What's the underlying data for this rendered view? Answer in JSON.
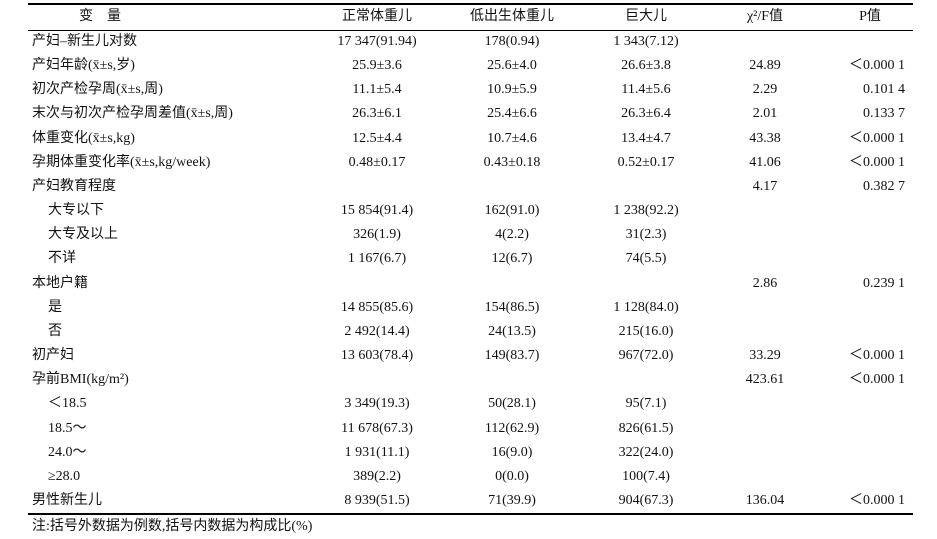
{
  "table": {
    "header": [
      "变　量",
      "正常体重儿",
      "低出生体重儿",
      "巨大儿",
      "χ²/F值",
      "P值"
    ],
    "rows": [
      [
        "产妇–新生儿对数",
        "17 347(91.94)",
        "178(0.94)",
        "1 343(7.12)",
        null,
        null
      ],
      [
        "产妇年龄(x̄±s,岁)",
        "25.9±3.6",
        "25.6±4.0",
        "26.6±3.8",
        "24.89",
        "＜0.000 1"
      ],
      [
        "初次产检孕周(x̄±s,周)",
        "11.1±5.4",
        "10.9±5.9",
        "11.4±5.6",
        "2.29",
        "0.101 4"
      ],
      [
        "末次与初次产检孕周差值(x̄±s,周)",
        "26.3±6.1",
        "25.4±6.6",
        "26.3±6.4",
        "2.01",
        "0.133 7"
      ],
      [
        "体重变化(x̄±s,kg)",
        "12.5±4.4",
        "10.7±4.6",
        "13.4±4.7",
        "43.38",
        "＜0.000 1"
      ],
      [
        "孕期体重变化率(x̄±s,kg/week)",
        "0.48±0.17",
        "0.43±0.18",
        "0.52±0.17",
        "41.06",
        "＜0.000 1"
      ],
      [
        "产妇教育程度",
        null,
        null,
        null,
        "4.17",
        "0.382 7"
      ],
      [
        "大专以下",
        "15 854(91.4)",
        "162(91.0)",
        "1 238(92.2)",
        null,
        null
      ],
      [
        "大专及以上",
        "326(1.9)",
        "4(2.2)",
        "31(2.3)",
        null,
        null
      ],
      [
        "不详",
        "1 167(6.7)",
        "12(6.7)",
        "74(5.5)",
        null,
        null
      ],
      [
        "本地户籍",
        null,
        null,
        null,
        "2.86",
        "0.239 1"
      ],
      [
        "是",
        "14 855(85.6)",
        "154(86.5)",
        "1 128(84.0)",
        null,
        null
      ],
      [
        "否",
        "2 492(14.4)",
        "24(13.5)",
        "215(16.0)",
        null,
        null
      ],
      [
        "初产妇",
        "13 603(78.4)",
        "149(83.7)",
        "967(72.0)",
        "33.29",
        "＜0.000 1"
      ],
      [
        "孕前BMI(kg/m²)",
        null,
        null,
        null,
        "423.61",
        "＜0.000 1"
      ],
      [
        "＜18.5",
        "3 349(19.3)",
        "50(28.1)",
        "95(7.1)",
        null,
        null
      ],
      [
        "18.5～",
        "11 678(67.3)",
        "112(62.9)",
        "826(61.5)",
        null,
        null
      ],
      [
        "24.0～",
        "1 931(11.1)",
        "16(9.0)",
        "322(24.0)",
        null,
        null
      ],
      [
        "≥28.0",
        "389(2.2)",
        "0(0.0)",
        "100(7.4)",
        null,
        null
      ],
      [
        "男性新生儿",
        "8 939(51.5)",
        "71(39.9)",
        "904(67.3)",
        "136.04",
        "＜0.000 1"
      ]
    ],
    "note": "注:括号外数据为例数,括号内数据为构成比(%)"
  }
}
